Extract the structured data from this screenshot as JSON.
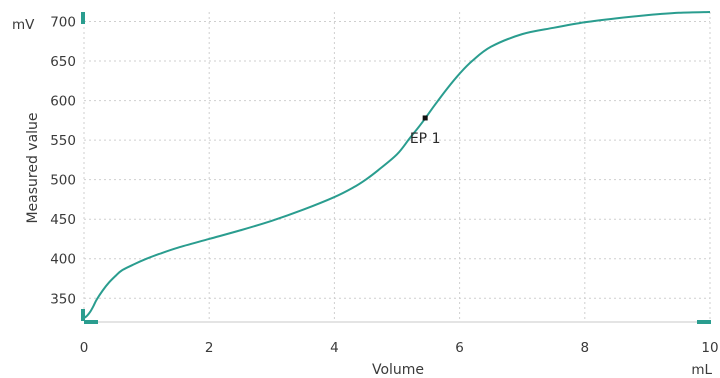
{
  "chart_data": {
    "type": "line",
    "title": "",
    "xlabel": "Volume",
    "ylabel": "Measured value",
    "x_unit": "mL",
    "y_unit": "mV",
    "xlim": [
      0,
      10
    ],
    "ylim": [
      320,
      712
    ],
    "x_ticks": [
      0,
      2,
      4,
      6,
      8,
      10
    ],
    "y_ticks": [
      350,
      400,
      450,
      500,
      550,
      600,
      650,
      700
    ],
    "grid": true,
    "line_color": "#2a9d8f",
    "series": [
      {
        "points": [
          [
            0.0,
            325
          ],
          [
            0.05,
            328
          ],
          [
            0.1,
            333
          ],
          [
            0.15,
            340
          ],
          [
            0.2,
            348
          ],
          [
            0.3,
            360
          ],
          [
            0.4,
            370
          ],
          [
            0.5,
            378
          ],
          [
            0.6,
            385
          ],
          [
            0.8,
            393
          ],
          [
            1.0,
            400
          ],
          [
            1.2,
            406
          ],
          [
            1.5,
            414
          ],
          [
            2.0,
            425
          ],
          [
            2.5,
            436
          ],
          [
            3.0,
            448
          ],
          [
            3.5,
            462
          ],
          [
            4.0,
            478
          ],
          [
            4.3,
            490
          ],
          [
            4.5,
            500
          ],
          [
            4.7,
            512
          ],
          [
            5.0,
            532
          ],
          [
            5.2,
            552
          ],
          [
            5.4,
            572
          ],
          [
            5.6,
            594
          ],
          [
            5.8,
            615
          ],
          [
            6.0,
            634
          ],
          [
            6.2,
            650
          ],
          [
            6.5,
            668
          ],
          [
            7.0,
            684
          ],
          [
            7.5,
            692
          ],
          [
            8.0,
            699
          ],
          [
            8.5,
            704
          ],
          [
            9.0,
            708
          ],
          [
            9.5,
            711
          ],
          [
            10.0,
            712
          ]
        ]
      }
    ],
    "annotations": [
      {
        "label": "EP 1",
        "x": 5.45,
        "y": 578
      }
    ]
  }
}
